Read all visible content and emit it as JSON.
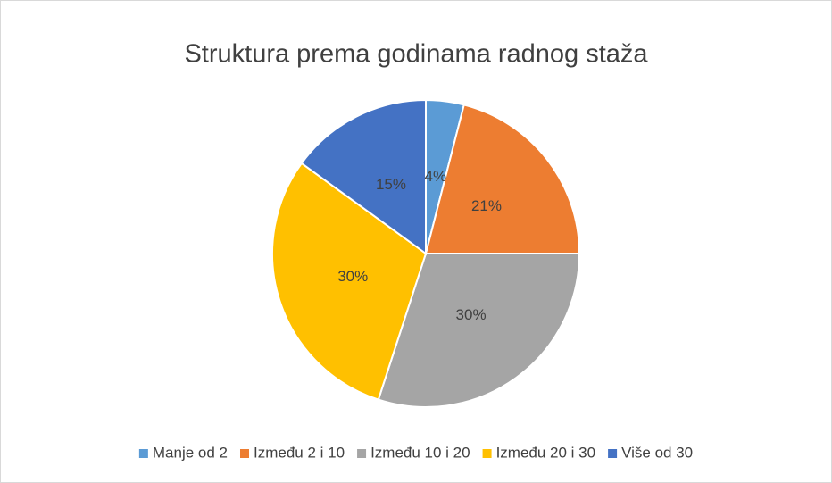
{
  "chart_data": {
    "type": "pie",
    "title": "Struktura prema godinama radnog staža",
    "categories": [
      "Manje od 2",
      "Između 2 i 10",
      "Između 10 i 20",
      "Između 20 i 30",
      "Više od 30"
    ],
    "values": [
      4,
      21,
      30,
      30,
      15
    ],
    "value_labels": [
      "4%",
      "21%",
      "30%",
      "30%",
      "15%"
    ],
    "colors": [
      "#5b9bd5",
      "#ed7d31",
      "#a5a5a5",
      "#ffc000",
      "#4472c4"
    ],
    "legend": "bottom"
  }
}
